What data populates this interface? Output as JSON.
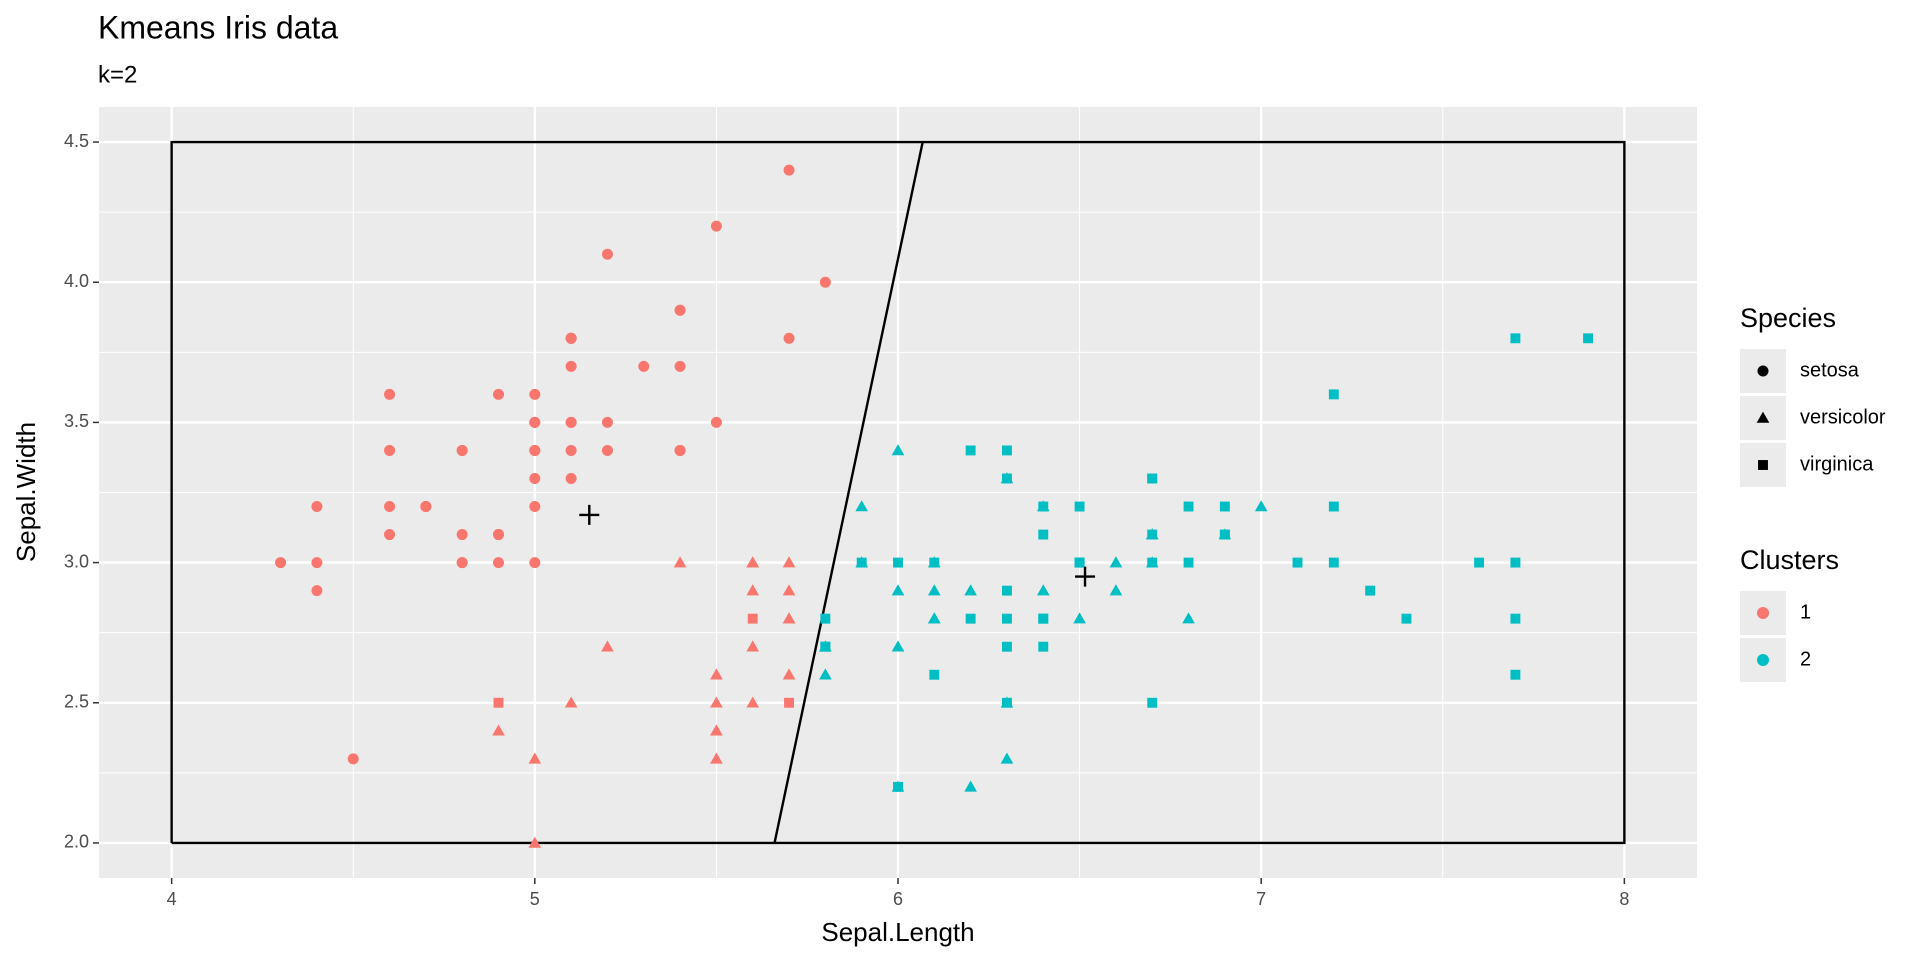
{
  "chart_data": {
    "type": "scatter",
    "title": "Kmeans Iris data",
    "subtitle": "k=2",
    "x_label": "Sepal.Length",
    "y_label": "Sepal.Width",
    "xlim": [
      3.8,
      8.2
    ],
    "ylim": [
      1.875,
      4.625
    ],
    "xticks": [
      4,
      5,
      6,
      7,
      8
    ],
    "yticks": [
      {
        "value": 2,
        "label": "2.0"
      },
      {
        "value": 2.5,
        "label": "2.5"
      },
      {
        "value": 3,
        "label": "3.0"
      },
      {
        "value": 3.5,
        "label": "3.5"
      },
      {
        "value": 4,
        "label": "4.0"
      },
      {
        "value": 4.5,
        "label": "4.5"
      }
    ],
    "grid": true,
    "legend_species_title": "Species",
    "legend_clusters_title": "Clusters",
    "clusters": [
      {
        "name": 1,
        "color": "#F8766D"
      },
      {
        "name": 2,
        "color": "#00BFC4"
      }
    ],
    "series": [
      {
        "name": "setosa",
        "shape": "circle",
        "x": [
          5.1,
          4.9,
          4.7,
          4.6,
          5.0,
          5.4,
          4.6,
          5.0,
          4.4,
          4.9,
          5.4,
          4.8,
          4.8,
          4.3,
          5.8,
          5.7,
          5.4,
          5.1,
          5.7,
          5.1,
          5.4,
          5.1,
          4.6,
          5.1,
          4.8,
          5.0,
          5.0,
          5.2,
          5.2,
          4.7,
          4.8,
          5.4,
          5.2,
          5.5,
          4.9,
          5.0,
          5.5,
          4.9,
          4.4,
          5.1,
          5.0,
          4.5,
          4.4,
          5.0,
          5.1,
          4.8,
          5.1,
          4.6,
          5.3,
          5.0
        ],
        "y": [
          3.5,
          3.0,
          3.2,
          3.1,
          3.6,
          3.9,
          3.4,
          3.4,
          2.9,
          3.1,
          3.7,
          3.4,
          3.0,
          3.0,
          4.0,
          4.4,
          3.9,
          3.5,
          3.8,
          3.8,
          3.4,
          3.7,
          3.6,
          3.3,
          3.4,
          3.0,
          3.4,
          3.5,
          3.4,
          3.2,
          3.1,
          3.4,
          4.1,
          4.2,
          3.1,
          3.2,
          3.5,
          3.6,
          3.0,
          3.4,
          3.5,
          2.3,
          3.2,
          3.5,
          3.8,
          3.0,
          3.8,
          3.2,
          3.7,
          3.3
        ],
        "cluster": [
          1,
          1,
          1,
          1,
          1,
          1,
          1,
          1,
          1,
          1,
          1,
          1,
          1,
          1,
          1,
          1,
          1,
          1,
          1,
          1,
          1,
          1,
          1,
          1,
          1,
          1,
          1,
          1,
          1,
          1,
          1,
          1,
          1,
          1,
          1,
          1,
          1,
          1,
          1,
          1,
          1,
          1,
          1,
          1,
          1,
          1,
          1,
          1,
          1,
          1
        ]
      },
      {
        "name": "versicolor",
        "shape": "triangle",
        "x": [
          7.0,
          6.4,
          6.9,
          5.5,
          6.5,
          5.7,
          6.3,
          4.9,
          6.6,
          5.2,
          5.0,
          5.9,
          6.0,
          6.1,
          5.6,
          6.7,
          5.6,
          5.8,
          6.2,
          5.6,
          5.9,
          6.1,
          6.3,
          6.1,
          6.4,
          6.6,
          6.8,
          6.7,
          6.0,
          5.7,
          5.5,
          5.5,
          5.8,
          6.0,
          5.4,
          6.0,
          6.7,
          6.3,
          5.6,
          5.5,
          5.5,
          6.1,
          5.8,
          5.0,
          5.6,
          5.7,
          5.7,
          6.2,
          5.1,
          5.7
        ],
        "y": [
          3.2,
          3.2,
          3.1,
          2.3,
          2.8,
          2.8,
          3.3,
          2.4,
          2.9,
          2.7,
          2.0,
          3.0,
          2.2,
          2.9,
          2.9,
          3.1,
          3.0,
          2.7,
          2.2,
          2.5,
          3.2,
          2.8,
          2.5,
          2.8,
          2.9,
          3.0,
          2.8,
          3.0,
          2.9,
          2.6,
          2.4,
          2.4,
          2.7,
          2.7,
          3.0,
          3.4,
          3.1,
          2.3,
          3.0,
          2.5,
          2.6,
          3.0,
          2.6,
          2.3,
          2.7,
          3.0,
          2.9,
          2.9,
          2.5,
          2.8
        ],
        "cluster": [
          2,
          2,
          2,
          1,
          2,
          1,
          2,
          1,
          2,
          1,
          1,
          2,
          2,
          2,
          1,
          2,
          1,
          2,
          2,
          1,
          2,
          2,
          2,
          2,
          2,
          2,
          2,
          2,
          2,
          1,
          1,
          1,
          2,
          2,
          1,
          2,
          2,
          2,
          1,
          1,
          1,
          2,
          2,
          1,
          1,
          1,
          1,
          2,
          1,
          1
        ]
      },
      {
        "name": "virginica",
        "shape": "square",
        "x": [
          6.3,
          5.8,
          7.1,
          6.3,
          6.5,
          7.6,
          4.9,
          7.3,
          6.7,
          7.2,
          6.5,
          6.4,
          6.8,
          5.7,
          5.8,
          6.4,
          6.5,
          7.7,
          7.7,
          6.0,
          6.9,
          5.6,
          7.7,
          6.3,
          6.7,
          7.2,
          6.2,
          6.1,
          6.4,
          7.2,
          7.4,
          7.9,
          6.4,
          6.3,
          6.1,
          7.7,
          6.3,
          6.4,
          6.0,
          6.9,
          6.7,
          6.9,
          5.8,
          6.8,
          6.7,
          6.7,
          6.3,
          6.5,
          6.2,
          5.9
        ],
        "y": [
          3.3,
          2.7,
          3.0,
          2.9,
          3.0,
          3.0,
          2.5,
          2.9,
          2.5,
          3.6,
          3.2,
          2.7,
          3.0,
          2.5,
          2.8,
          3.2,
          3.0,
          3.8,
          2.6,
          2.2,
          3.2,
          2.8,
          2.8,
          2.7,
          3.3,
          3.2,
          2.8,
          3.0,
          2.8,
          3.0,
          2.8,
          3.8,
          2.8,
          2.8,
          2.6,
          3.0,
          3.4,
          3.1,
          3.0,
          3.1,
          3.1,
          3.1,
          2.7,
          3.2,
          3.3,
          3.0,
          2.5,
          3.0,
          3.4,
          3.0
        ],
        "cluster": [
          2,
          2,
          2,
          2,
          2,
          2,
          1,
          2,
          2,
          2,
          2,
          2,
          2,
          1,
          2,
          2,
          2,
          2,
          2,
          2,
          2,
          1,
          2,
          2,
          2,
          2,
          2,
          2,
          2,
          2,
          2,
          2,
          2,
          2,
          2,
          2,
          2,
          2,
          2,
          2,
          2,
          2,
          2,
          2,
          2,
          2,
          2,
          2,
          2,
          2
        ]
      }
    ],
    "centers": {
      "x": [
        5.15,
        6.515
      ],
      "y": [
        3.17,
        2.95
      ]
    },
    "boundary": {
      "x": [
        5.66,
        6.068
      ],
      "y": [
        2.0,
        4.5
      ]
    },
    "region": {
      "x": [
        4,
        8
      ],
      "y": [
        2,
        4.5
      ]
    }
  }
}
